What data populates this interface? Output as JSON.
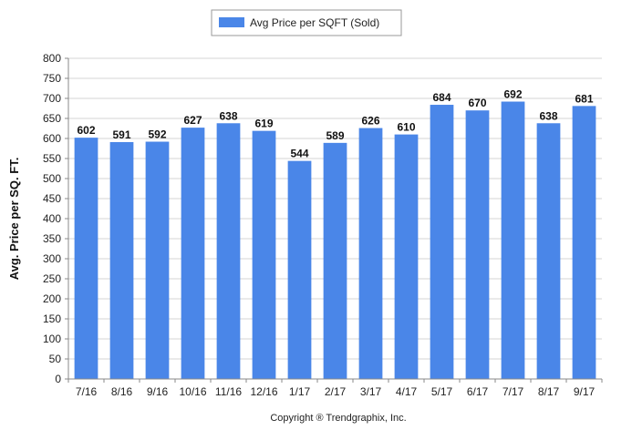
{
  "legend": {
    "label": "Avg Price per SQFT (Sold)"
  },
  "footer": {
    "copyright": "Copyright ® Trendgraphix, Inc."
  },
  "chart_data": {
    "type": "bar",
    "title": "",
    "xlabel": "",
    "ylabel": "Avg. Price per SQ. FT.",
    "categories": [
      "7/16",
      "8/16",
      "9/16",
      "10/16",
      "11/16",
      "12/16",
      "1/17",
      "2/17",
      "3/17",
      "4/17",
      "5/17",
      "6/17",
      "7/17",
      "8/17",
      "9/17"
    ],
    "series": [
      {
        "name": "Avg Price per SQFT (Sold)",
        "values": [
          602,
          591,
          592,
          627,
          638,
          619,
          544,
          589,
          626,
          610,
          684,
          670,
          692,
          638,
          681
        ],
        "color": "#4a86e8"
      }
    ],
    "ylim": [
      0,
      800
    ],
    "yticks": [
      0,
      50,
      100,
      150,
      200,
      250,
      300,
      350,
      400,
      450,
      500,
      550,
      600,
      650,
      700,
      750,
      800
    ],
    "grid": true,
    "legend_position": "top-center",
    "data_labels": true
  }
}
